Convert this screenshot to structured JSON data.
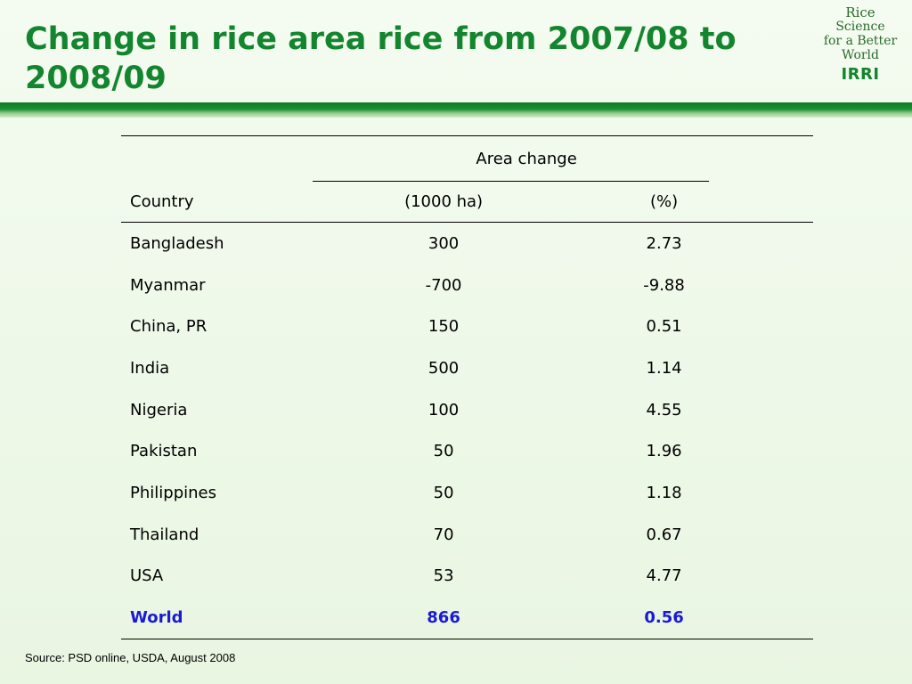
{
  "slide": {
    "title": "Change in rice area rice from 2007/08 to 2008/09",
    "source": "Source: PSD online, USDA, August 2008"
  },
  "logo": {
    "line1": "Rice",
    "line2": "Science",
    "line3": "for a Better",
    "line4": "World",
    "org": "IRRI"
  },
  "table": {
    "group_header": "Area change",
    "col_country": "Country",
    "col_ha": "(1000 ha)",
    "col_pct": "(%)",
    "rows": [
      {
        "country": "Bangladesh",
        "ha": "300",
        "pct": "2.73"
      },
      {
        "country": "Myanmar",
        "ha": "-700",
        "pct": "-9.88"
      },
      {
        "country": "China, PR",
        "ha": "150",
        "pct": "0.51"
      },
      {
        "country": "India",
        "ha": "500",
        "pct": "1.14"
      },
      {
        "country": "Nigeria",
        "ha": "100",
        "pct": "4.55"
      },
      {
        "country": "Pakistan",
        "ha": "50",
        "pct": "1.96"
      },
      {
        "country": "Philippines",
        "ha": "50",
        "pct": "1.18"
      },
      {
        "country": "Thailand",
        "ha": "70",
        "pct": "0.67"
      },
      {
        "country": "USA",
        "ha": "53",
        "pct": "4.77"
      }
    ],
    "total": {
      "country": "World",
      "ha": "866",
      "pct": "0.56"
    }
  },
  "colors": {
    "title": "#14852f",
    "band": "#1d8f33",
    "total_row": "#1a1ad6"
  }
}
